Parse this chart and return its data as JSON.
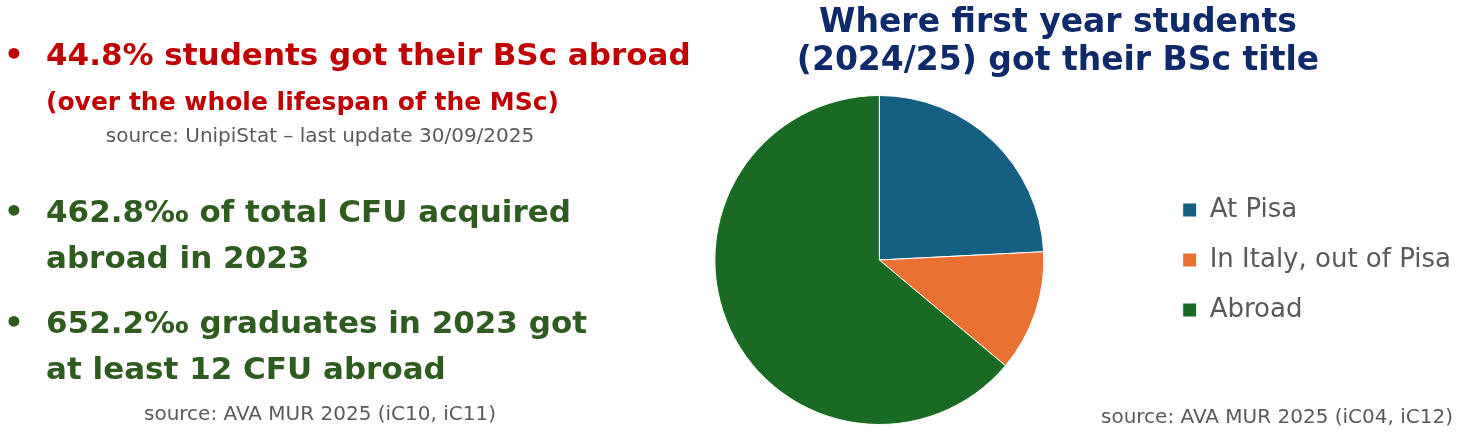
{
  "chart_data": [
    {
      "type": "other",
      "annotations": [
        "• 44.8% students got their BSc abroad",
        "(over the whole lifespan of the MSc)",
        "source: UnipiStat – last update 30/09/2025",
        "• 462.8‰ of total CFU acquired abroad in 2023",
        "• 652.2‰ graduates in 2023 got at least 12 CFU abroad",
        "source: AVA MUR 2025 (iC10, iC11)"
      ]
    },
    {
      "type": "pie",
      "title": "Where first year students (2024/25) got their BSc title",
      "categories": [
        "At Pisa",
        "In Italy, out of Pisa",
        "Abroad"
      ],
      "values": [
        24.2,
        11.9,
        63.9
      ],
      "colors": [
        "#155f82",
        "#e97132",
        "#196b24"
      ],
      "legend": "right",
      "annotations": [
        "source: AVA MUR 2025 (iC04, iC12)"
      ]
    }
  ]
}
